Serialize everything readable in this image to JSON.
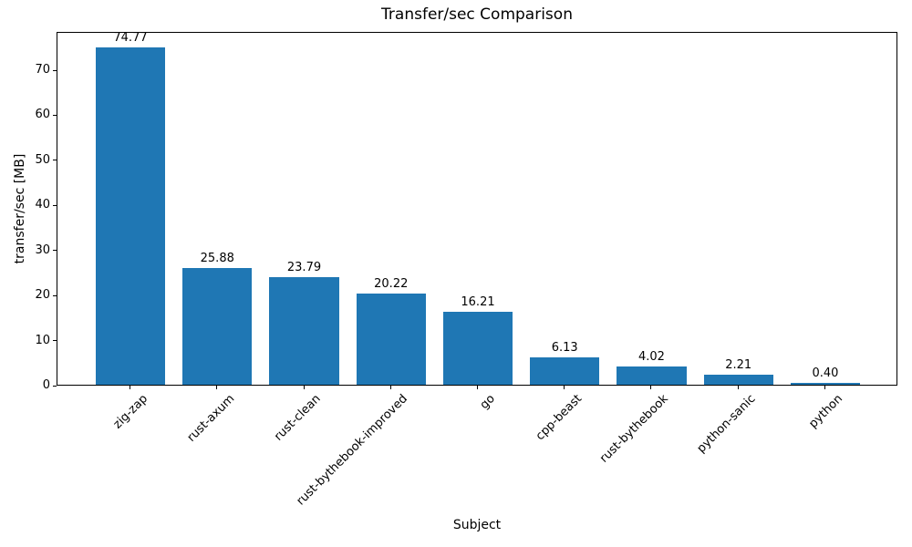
{
  "chart_data": {
    "type": "bar",
    "title": "Transfer/sec Comparison",
    "xlabel": "Subject",
    "ylabel": "transfer/sec [MB]",
    "categories": [
      "zig-zap",
      "rust-axum",
      "rust-clean",
      "rust-bythebook-improved",
      "go",
      "cpp-beast",
      "rust-bythebook",
      "python-sanic",
      "python"
    ],
    "values": [
      74.77,
      25.88,
      23.79,
      20.22,
      16.21,
      6.13,
      4.02,
      2.21,
      0.4
    ],
    "bar_value_labels": [
      "74.77",
      "25.88",
      "23.79",
      "20.22",
      "16.21",
      "6.13",
      "4.02",
      "2.21",
      "0.40"
    ],
    "yticks": [
      0,
      10,
      20,
      30,
      40,
      50,
      60,
      70
    ],
    "ylim": [
      0,
      78.51
    ],
    "xtick_rotation_deg": 45,
    "bar_color": "#1f77b4",
    "text_color": "#000000",
    "background_color": "#ffffff",
    "grid": false,
    "legend": "none"
  }
}
